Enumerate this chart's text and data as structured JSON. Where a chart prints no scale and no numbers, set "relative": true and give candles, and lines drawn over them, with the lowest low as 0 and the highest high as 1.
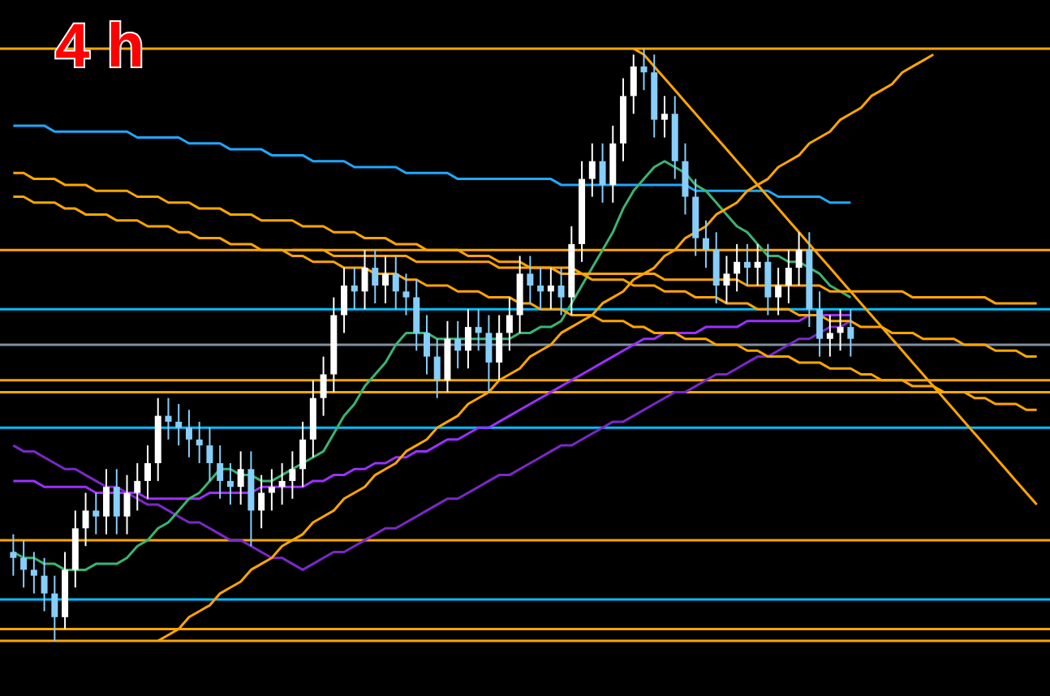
{
  "chart_data": {
    "type": "candlestick",
    "title": "4 h",
    "relative": true,
    "categories": [
      null,
      null,
      null,
      null,
      null,
      null,
      null,
      null,
      null,
      null,
      null,
      null,
      null,
      null,
      null,
      null,
      null,
      null,
      null,
      null,
      null,
      null,
      null,
      null,
      null,
      null,
      null,
      null,
      null,
      null,
      null,
      null,
      null,
      null,
      null,
      null,
      null,
      null,
      null,
      null,
      null,
      null,
      null,
      null,
      null,
      null,
      null,
      null,
      null,
      null,
      null,
      null,
      null,
      null,
      null,
      null,
      null,
      null,
      null,
      null,
      null,
      null,
      null,
      null,
      null,
      null,
      null,
      null,
      null,
      null,
      null,
      null,
      null,
      null,
      null,
      null,
      null,
      null,
      null,
      null,
      null,
      null,
      null,
      null,
      null,
      null,
      null,
      null,
      null,
      null,
      null,
      null,
      null,
      null,
      null,
      null,
      null,
      null,
      null,
      null
    ],
    "ohlc": [
      [
        0.15,
        0.18,
        0.11,
        0.14
      ],
      [
        0.14,
        0.17,
        0.09,
        0.12
      ],
      [
        0.12,
        0.15,
        0.08,
        0.11
      ],
      [
        0.11,
        0.14,
        0.05,
        0.08
      ],
      [
        0.08,
        0.11,
        0,
        0.04
      ],
      [
        0.04,
        0.15,
        0.02,
        0.12
      ],
      [
        0.12,
        0.22,
        0.09,
        0.19
      ],
      [
        0.19,
        0.25,
        0.16,
        0.22
      ],
      [
        0.22,
        0.25,
        0.18,
        0.21
      ],
      [
        0.21,
        0.29,
        0.18,
        0.26
      ],
      [
        0.26,
        0.29,
        0.18,
        0.21
      ],
      [
        0.21,
        0.28,
        0.18,
        0.25
      ],
      [
        0.25,
        0.3,
        0.22,
        0.27
      ],
      [
        0.27,
        0.33,
        0.24,
        0.3
      ],
      [
        0.3,
        0.41,
        0.27,
        0.38
      ],
      [
        0.38,
        0.41,
        0.34,
        0.37
      ],
      [
        0.37,
        0.4,
        0.33,
        0.36
      ],
      [
        0.36,
        0.39,
        0.31,
        0.34
      ],
      [
        0.34,
        0.37,
        0.3,
        0.33
      ],
      [
        0.33,
        0.36,
        0.27,
        0.3
      ],
      [
        0.3,
        0.33,
        0.24,
        0.27
      ],
      [
        0.27,
        0.3,
        0.23,
        0.26
      ],
      [
        0.26,
        0.32,
        0.23,
        0.29
      ],
      [
        0.29,
        0.32,
        0.16,
        0.22
      ],
      [
        0.22,
        0.28,
        0.19,
        0.25
      ],
      [
        0.25,
        0.29,
        0.22,
        0.26
      ],
      [
        0.26,
        0.3,
        0.23,
        0.27
      ],
      [
        0.27,
        0.32,
        0.24,
        0.29
      ],
      [
        0.29,
        0.37,
        0.26,
        0.34
      ],
      [
        0.34,
        0.44,
        0.31,
        0.41
      ],
      [
        0.41,
        0.48,
        0.38,
        0.45
      ],
      [
        0.45,
        0.58,
        0.42,
        0.55
      ],
      [
        0.55,
        0.63,
        0.52,
        0.6
      ],
      [
        0.6,
        0.63,
        0.56,
        0.59
      ],
      [
        0.59,
        0.66,
        0.56,
        0.63
      ],
      [
        0.63,
        0.66,
        0.57,
        0.6
      ],
      [
        0.6,
        0.65,
        0.57,
        0.62
      ],
      [
        0.62,
        0.65,
        0.56,
        0.59
      ],
      [
        0.59,
        0.62,
        0.55,
        0.58
      ],
      [
        0.58,
        0.61,
        0.49,
        0.52
      ],
      [
        0.52,
        0.55,
        0.45,
        0.48
      ],
      [
        0.48,
        0.51,
        0.41,
        0.44
      ],
      [
        0.44,
        0.54,
        0.42,
        0.51
      ],
      [
        0.51,
        0.54,
        0.46,
        0.49
      ],
      [
        0.49,
        0.56,
        0.46,
        0.53
      ],
      [
        0.53,
        0.56,
        0.49,
        0.52
      ],
      [
        0.52,
        0.55,
        0.42,
        0.47
      ],
      [
        0.47,
        0.55,
        0.44,
        0.52
      ],
      [
        0.52,
        0.58,
        0.49,
        0.55
      ],
      [
        0.55,
        0.65,
        0.52,
        0.62
      ],
      [
        0.62,
        0.65,
        0.57,
        0.6
      ],
      [
        0.6,
        0.63,
        0.56,
        0.59
      ],
      [
        0.59,
        0.63,
        0.56,
        0.6
      ],
      [
        0.6,
        0.63,
        0.55,
        0.58
      ],
      [
        0.58,
        0.7,
        0.55,
        0.67
      ],
      [
        0.67,
        0.81,
        0.64,
        0.78
      ],
      [
        0.78,
        0.84,
        0.75,
        0.81
      ],
      [
        0.81,
        0.84,
        0.74,
        0.77
      ],
      [
        0.77,
        0.87,
        0.74,
        0.84
      ],
      [
        0.84,
        0.95,
        0.81,
        0.92
      ],
      [
        0.92,
        0.99,
        0.89,
        0.97
      ],
      [
        0.97,
        1,
        0.93,
        0.96
      ],
      [
        0.96,
        0.99,
        0.85,
        0.88
      ],
      [
        0.88,
        0.92,
        0.85,
        0.89
      ],
      [
        0.89,
        0.92,
        0.78,
        0.81
      ],
      [
        0.81,
        0.84,
        0.72,
        0.75
      ],
      [
        0.75,
        0.78,
        0.65,
        0.68
      ],
      [
        0.68,
        0.71,
        0.63,
        0.66
      ],
      [
        0.66,
        0.69,
        0.57,
        0.6
      ],
      [
        0.6,
        0.65,
        0.57,
        0.62
      ],
      [
        0.62,
        0.67,
        0.59,
        0.64
      ],
      [
        0.64,
        0.67,
        0.6,
        0.63
      ],
      [
        0.63,
        0.67,
        0.6,
        0.64
      ],
      [
        0.64,
        0.67,
        0.55,
        0.58
      ],
      [
        0.58,
        0.63,
        0.55,
        0.6
      ],
      [
        0.6,
        0.66,
        0.57,
        0.63
      ],
      [
        0.63,
        0.69,
        0.6,
        0.66
      ],
      [
        0.66,
        0.69,
        0.53,
        0.56
      ],
      [
        0.56,
        0.59,
        0.48,
        0.51
      ],
      [
        0.51,
        0.55,
        0.48,
        0.52
      ],
      [
        0.52,
        0.56,
        0.49,
        0.53
      ],
      [
        0.53,
        0.56,
        0.48,
        0.51
      ],
      null,
      null,
      null,
      null,
      null,
      null,
      null,
      null,
      null,
      null,
      null,
      null,
      null,
      null,
      null,
      null,
      null,
      null
    ],
    "colors": [
      "#87cefa",
      "#87cefa",
      "#87cefa",
      "#87cefa",
      "#87cefa",
      "#ffffff",
      "#ffffff",
      "#ffffff",
      "#87cefa",
      "#ffffff",
      "#87cefa",
      "#ffffff",
      "#ffffff",
      "#ffffff",
      "#ffffff",
      "#87cefa",
      "#87cefa",
      "#87cefa",
      "#87cefa",
      "#87cefa",
      "#87cefa",
      "#87cefa",
      "#ffffff",
      "#87cefa",
      "#ffffff",
      "#ffffff",
      "#ffffff",
      "#ffffff",
      "#ffffff",
      "#ffffff",
      "#ffffff",
      "#ffffff",
      "#ffffff",
      "#87cefa",
      "#ffffff",
      "#87cefa",
      "#ffffff",
      "#87cefa",
      "#87cefa",
      "#87cefa",
      "#87cefa",
      "#87cefa",
      "#ffffff",
      "#87cefa",
      "#ffffff",
      "#87cefa",
      "#87cefa",
      "#ffffff",
      "#ffffff",
      "#ffffff",
      "#87cefa",
      "#87cefa",
      "#ffffff",
      "#87cefa",
      "#ffffff",
      "#ffffff",
      "#ffffff",
      "#87cefa",
      "#ffffff",
      "#ffffff",
      "#ffffff",
      "#87cefa",
      "#87cefa",
      "#ffffff",
      "#87cefa",
      "#87cefa",
      "#87cefa",
      "#87cefa",
      "#87cefa",
      "#ffffff",
      "#ffffff",
      "#87cefa",
      "#ffffff",
      "#87cefa",
      "#ffffff",
      "#ffffff",
      "#ffffff",
      "#87cefa",
      "#87cefa",
      "#ffffff",
      "#ffffff",
      "#87cefa",
      null,
      null,
      null,
      null,
      null,
      null,
      null,
      null,
      null,
      null,
      null,
      null,
      null,
      null,
      null,
      null,
      null,
      null
    ],
    "series": [
      {
        "type": "line",
        "color": "#1fa8ff",
        "values": [
          0.87,
          0.87,
          0.87,
          0.87,
          0.86,
          0.86,
          0.86,
          0.86,
          0.86,
          0.86,
          0.86,
          0.86,
          0.85,
          0.85,
          0.85,
          0.85,
          0.85,
          0.84,
          0.84,
          0.84,
          0.84,
          0.83,
          0.83,
          0.83,
          0.83,
          0.82,
          0.82,
          0.82,
          0.82,
          0.81,
          0.81,
          0.81,
          0.81,
          0.8,
          0.8,
          0.8,
          0.8,
          0.8,
          0.79,
          0.79,
          0.79,
          0.79,
          0.79,
          0.78,
          0.78,
          0.78,
          0.78,
          0.78,
          0.78,
          0.78,
          0.78,
          0.78,
          0.78,
          0.77,
          0.77,
          0.77,
          0.77,
          0.77,
          0.77,
          0.77,
          0.77,
          0.77,
          0.77,
          0.77,
          0.77,
          0.77,
          0.76,
          0.76,
          0.76,
          0.76,
          0.76,
          0.76,
          0.76,
          0.76,
          0.75,
          0.75,
          0.75,
          0.75,
          0.75,
          0.74,
          0.74,
          0.74,
          null,
          null,
          null,
          null,
          null,
          null,
          null,
          null,
          null,
          null,
          null,
          null,
          null,
          null,
          null,
          null,
          null,
          null
        ]
      },
      {
        "type": "line",
        "color": "#9b30ff",
        "values": [
          0.27,
          0.27,
          0.27,
          0.26,
          0.26,
          0.26,
          0.26,
          0.26,
          0.25,
          0.25,
          0.25,
          0.25,
          0.25,
          0.24,
          0.24,
          0.24,
          0.24,
          0.24,
          0.24,
          0.25,
          0.25,
          0.25,
          0.25,
          0.25,
          0.26,
          0.26,
          0.26,
          0.26,
          0.26,
          0.27,
          0.27,
          0.28,
          0.28,
          0.29,
          0.29,
          0.3,
          0.3,
          0.31,
          0.31,
          0.32,
          0.32,
          0.33,
          0.34,
          0.34,
          0.35,
          0.36,
          0.36,
          0.37,
          0.38,
          0.39,
          0.4,
          0.41,
          0.42,
          0.43,
          0.44,
          0.45,
          0.46,
          0.47,
          0.48,
          0.49,
          0.5,
          0.51,
          0.51,
          0.52,
          0.52,
          0.52,
          0.52,
          0.53,
          0.53,
          0.53,
          0.53,
          0.54,
          0.54,
          0.54,
          0.54,
          0.54,
          0.54,
          0.55,
          0.55,
          0.55,
          0.55,
          0.55,
          null,
          null,
          null,
          null,
          null,
          null,
          null,
          null,
          null,
          null,
          null,
          null,
          null,
          null,
          null,
          null,
          null,
          null
        ]
      },
      {
        "type": "line",
        "color": "#7a28c8",
        "values": [
          0.33,
          0.32,
          0.32,
          0.31,
          0.3,
          0.29,
          0.29,
          0.28,
          0.27,
          0.26,
          0.26,
          0.25,
          0.24,
          0.23,
          0.23,
          0.22,
          0.21,
          0.2,
          0.2,
          0.19,
          0.18,
          0.17,
          0.17,
          0.16,
          0.15,
          0.14,
          0.14,
          0.13,
          0.12,
          0.13,
          0.14,
          0.15,
          0.15,
          0.16,
          0.17,
          0.18,
          0.19,
          0.19,
          0.2,
          0.21,
          0.22,
          0.23,
          0.24,
          0.24,
          0.25,
          0.26,
          0.27,
          0.28,
          0.28,
          0.29,
          0.3,
          0.31,
          0.32,
          0.33,
          0.33,
          0.34,
          0.35,
          0.36,
          0.37,
          0.37,
          0.38,
          0.39,
          0.4,
          0.41,
          0.42,
          0.42,
          0.43,
          0.44,
          0.45,
          0.45,
          0.46,
          0.47,
          0.48,
          0.48,
          0.49,
          0.5,
          0.51,
          0.51,
          0.52,
          0.53,
          0.53,
          0.54,
          null,
          null,
          null,
          null,
          null,
          null,
          null,
          null,
          null,
          null,
          null,
          null,
          null,
          null,
          null,
          null,
          null,
          null
        ]
      },
      {
        "type": "line",
        "color": "#3cb371",
        "values": [
          0.15,
          0.14,
          0.14,
          0.13,
          0.13,
          0.12,
          0.12,
          0.12,
          0.13,
          0.13,
          0.13,
          0.14,
          0.16,
          0.17,
          0.19,
          0.2,
          0.22,
          0.24,
          0.25,
          0.27,
          0.29,
          0.29,
          0.28,
          0.28,
          0.27,
          0.27,
          0.28,
          0.29,
          0.3,
          0.31,
          0.32,
          0.35,
          0.38,
          0.4,
          0.43,
          0.45,
          0.47,
          0.5,
          0.52,
          0.52,
          0.52,
          0.51,
          0.51,
          0.51,
          0.51,
          0.51,
          0.51,
          0.51,
          0.51,
          0.52,
          0.52,
          0.53,
          0.53,
          0.54,
          0.57,
          0.6,
          0.63,
          0.66,
          0.69,
          0.73,
          0.76,
          0.78,
          0.8,
          0.81,
          0.8,
          0.79,
          0.77,
          0.76,
          0.74,
          0.72,
          0.7,
          0.69,
          0.67,
          0.65,
          0.65,
          0.64,
          0.64,
          0.63,
          0.62,
          0.6,
          0.59,
          0.58,
          null,
          null,
          null,
          null,
          null,
          null,
          null,
          null,
          null,
          null,
          null,
          null,
          null,
          null,
          null,
          null,
          null,
          null
        ]
      },
      {
        "type": "line",
        "color": "#ffa500",
        "values": [
          null,
          null,
          null,
          null,
          null,
          null,
          null,
          null,
          null,
          null,
          null,
          null,
          null,
          null,
          0,
          0.01,
          0.02,
          0.04,
          0.05,
          0.06,
          0.08,
          0.09,
          0.1,
          0.12,
          0.13,
          0.14,
          0.16,
          0.17,
          0.18,
          0.2,
          0.21,
          0.22,
          0.24,
          0.25,
          0.26,
          0.28,
          0.29,
          0.3,
          0.32,
          0.33,
          0.34,
          0.36,
          0.37,
          0.38,
          0.4,
          0.41,
          0.42,
          0.44,
          0.45,
          0.46,
          0.48,
          0.49,
          0.5,
          0.52,
          0.53,
          0.54,
          0.55,
          0.57,
          0.58,
          0.59,
          0.61,
          0.62,
          0.63,
          0.65,
          0.66,
          0.68,
          0.69,
          0.7,
          0.72,
          0.73,
          0.74,
          0.76,
          0.77,
          0.78,
          0.8,
          0.81,
          0.82,
          0.84,
          0.85,
          0.86,
          0.88,
          0.89,
          0.9,
          0.92,
          0.93,
          0.94,
          0.96,
          0.97,
          0.98,
          0.99,
          null,
          null,
          null,
          null,
          null,
          null,
          null,
          null,
          null,
          null
        ]
      },
      {
        "type": "line",
        "color": "#ffa500",
        "values": [
          null,
          null,
          null,
          null,
          null,
          null,
          null,
          null,
          null,
          null,
          null,
          null,
          null,
          null,
          null,
          null,
          null,
          null,
          null,
          null,
          null,
          null,
          null,
          null,
          null,
          null,
          null,
          null,
          null,
          null,
          null,
          null,
          null,
          null,
          null,
          null,
          null,
          null,
          null,
          null,
          null,
          null,
          null,
          null,
          null,
          null,
          null,
          null,
          null,
          null,
          null,
          null,
          null,
          null,
          null,
          null,
          null,
          null,
          null,
          null,
          1,
          0.99,
          0.97,
          0.95,
          0.93,
          0.91,
          0.89,
          0.87,
          0.85,
          0.83,
          0.81,
          0.79,
          0.77,
          0.75,
          0.73,
          0.71,
          0.69,
          0.67,
          0.65,
          0.63,
          0.61,
          0.59,
          0.57,
          0.55,
          0.53,
          0.51,
          0.49,
          0.47,
          0.45,
          0.43,
          0.41,
          0.39,
          0.37,
          0.35,
          0.33,
          0.31,
          0.29,
          0.27,
          0.25,
          0.23
        ]
      },
      {
        "type": "line",
        "color": "#ffa500",
        "values": [
          0.79,
          0.79,
          0.78,
          0.78,
          0.78,
          0.77,
          0.77,
          0.77,
          0.76,
          0.76,
          0.76,
          0.76,
          0.75,
          0.75,
          0.75,
          0.74,
          0.74,
          0.74,
          0.73,
          0.73,
          0.73,
          0.72,
          0.72,
          0.72,
          0.71,
          0.71,
          0.71,
          0.71,
          0.7,
          0.7,
          0.7,
          0.69,
          0.69,
          0.69,
          0.68,
          0.68,
          0.68,
          0.67,
          0.67,
          0.67,
          0.66,
          0.66,
          0.66,
          0.66,
          0.65,
          0.65,
          0.65,
          0.64,
          0.64,
          0.64,
          0.63,
          0.63,
          0.63,
          0.62,
          0.62,
          0.62,
          0.61,
          0.61,
          0.61,
          0.61,
          0.6,
          0.6,
          0.6,
          0.59,
          0.59,
          0.59,
          0.58,
          0.58,
          0.58,
          0.57,
          0.57,
          0.57,
          0.56,
          0.56,
          0.56,
          0.56,
          0.55,
          0.55,
          0.55,
          0.54,
          0.54,
          0.54,
          0.53,
          0.53,
          0.53,
          0.52,
          0.52,
          0.52,
          0.51,
          0.51,
          0.51,
          0.51,
          0.5,
          0.5,
          0.5,
          0.49,
          0.49,
          0.49,
          0.48,
          0.48
        ]
      },
      {
        "type": "line",
        "color": "#ffa500",
        "values": [
          0.75,
          0.75,
          0.74,
          0.74,
          0.74,
          0.73,
          0.73,
          0.72,
          0.72,
          0.72,
          0.71,
          0.71,
          0.71,
          0.7,
          0.7,
          0.7,
          0.69,
          0.69,
          0.68,
          0.68,
          0.68,
          0.67,
          0.67,
          0.67,
          0.66,
          0.66,
          0.66,
          0.65,
          0.65,
          0.64,
          0.64,
          0.64,
          0.63,
          0.63,
          0.63,
          0.62,
          0.62,
          0.62,
          0.61,
          0.61,
          0.6,
          0.6,
          0.6,
          0.59,
          0.59,
          0.59,
          0.58,
          0.58,
          0.58,
          0.57,
          0.57,
          0.56,
          0.56,
          0.56,
          0.55,
          0.55,
          0.55,
          0.54,
          0.54,
          0.54,
          0.53,
          0.53,
          0.52,
          0.52,
          0.52,
          0.51,
          0.51,
          0.51,
          0.5,
          0.5,
          0.5,
          0.49,
          0.49,
          0.48,
          0.48,
          0.48,
          0.47,
          0.47,
          0.47,
          0.46,
          0.46,
          0.46,
          0.45,
          0.45,
          0.44,
          0.44,
          0.44,
          0.43,
          0.43,
          0.43,
          0.42,
          0.42,
          0.42,
          0.41,
          0.41,
          0.4,
          0.4,
          0.4,
          0.39,
          0.39
        ]
      },
      {
        "type": "line",
        "color": "#ffa500",
        "values": [
          null,
          null,
          null,
          null,
          null,
          null,
          null,
          null,
          null,
          null,
          null,
          null,
          null,
          null,
          null,
          null,
          null,
          null,
          null,
          null,
          null,
          null,
          null,
          null,
          null,
          null,
          null,
          0.66,
          0.66,
          0.66,
          0.66,
          0.65,
          0.65,
          0.65,
          0.65,
          0.65,
          0.65,
          0.65,
          0.65,
          0.64,
          0.64,
          0.64,
          0.64,
          0.64,
          0.64,
          0.64,
          0.64,
          0.63,
          0.63,
          0.63,
          0.63,
          0.63,
          0.63,
          0.63,
          0.63,
          0.62,
          0.62,
          0.62,
          0.62,
          0.62,
          0.62,
          0.62,
          0.62,
          0.61,
          0.61,
          0.61,
          0.61,
          0.61,
          0.61,
          0.61,
          0.61,
          0.6,
          0.6,
          0.6,
          0.6,
          0.6,
          0.6,
          0.6,
          0.6,
          0.59,
          0.59,
          0.59,
          0.59,
          0.59,
          0.59,
          0.59,
          0.59,
          0.58,
          0.58,
          0.58,
          0.58,
          0.58,
          0.58,
          0.58,
          0.58,
          0.57,
          0.57,
          0.57,
          0.57,
          0.57
        ]
      }
    ],
    "ref_lines": [
      {
        "axis": "y",
        "value": 1,
        "color": "#ffa500"
      },
      {
        "axis": "y",
        "value": 0.66,
        "color": "#ffa500"
      },
      {
        "axis": "y",
        "value": 0.44,
        "color": "#ffa500"
      },
      {
        "axis": "y",
        "value": 0.42,
        "color": "#ffa500"
      },
      {
        "axis": "y",
        "value": 0.17,
        "color": "#ffa500"
      },
      {
        "axis": "y",
        "value": 0.02,
        "color": "#ffa500"
      },
      {
        "axis": "y",
        "value": 0,
        "color": "#ffa500"
      },
      {
        "axis": "y",
        "value": 0.56,
        "color": "#00bfff"
      },
      {
        "axis": "y",
        "value": 0.36,
        "color": "#00bfff"
      },
      {
        "axis": "y",
        "value": 0.07,
        "color": "#00bfff"
      },
      {
        "axis": "y",
        "value": 0.5,
        "color": "#8090a0"
      }
    ]
  }
}
